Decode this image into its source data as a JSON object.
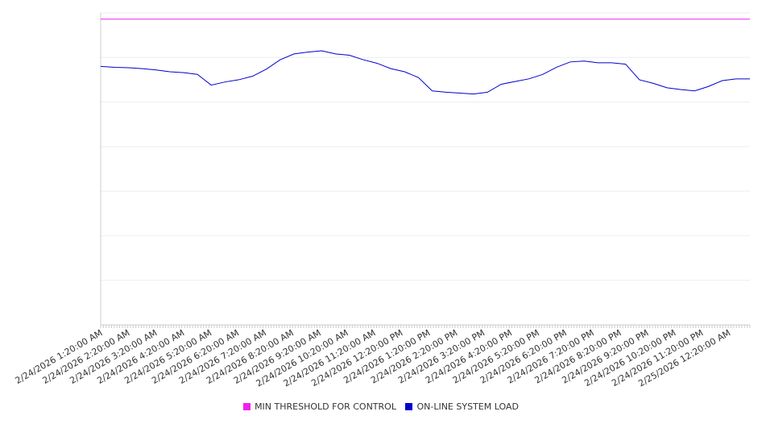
{
  "chart_data": {
    "type": "line",
    "title": "",
    "xlabel": "",
    "ylabel": "",
    "grid": true,
    "legend_placement": "bottom",
    "y_axis_labels_shown": false,
    "x_ticks": [
      "2/24/2026 1:20:00 AM",
      "2/24/2026 2:20:00 AM",
      "2/24/2026 3:20:00 AM",
      "2/24/2026 4:20:00 AM",
      "2/24/2026 5:20:00 AM",
      "2/24/2026 6:20:00 AM",
      "2/24/2026 7:20:00 AM",
      "2/24/2026 8:20:00 AM",
      "2/24/2026 9:20:00 AM",
      "2/24/2026 10:20:00 AM",
      "2/24/2026 11:20:00 AM",
      "2/24/2026 12:20:00 PM",
      "2/24/2026 1:20:00 PM",
      "2/24/2026 2:20:00 PM",
      "2/24/2026 3:20:00 PM",
      "2/24/2026 4:20:00 PM",
      "2/24/2026 5:20:00 PM",
      "2/24/2026 6:20:00 PM",
      "2/24/2026 7:20:00 PM",
      "2/24/2026 8:20:00 PM",
      "2/24/2026 9:20:00 PM",
      "2/24/2026 10:20:00 PM",
      "2/24/2026 11:20:00 PM",
      "2/25/2026 12:20:00 AM"
    ],
    "ylim": [
      0,
      7
    ],
    "series": [
      {
        "name": "MIN THRESHOLD FOR CONTROL",
        "color": "#ee22ee",
        "values": [
          6.86,
          6.86,
          6.86,
          6.86,
          6.86,
          6.86,
          6.86,
          6.86,
          6.86,
          6.86,
          6.86,
          6.86,
          6.86,
          6.86,
          6.86,
          6.86,
          6.86,
          6.86,
          6.86,
          6.86,
          6.86,
          6.86,
          6.86,
          6.86,
          6.86,
          6.86,
          6.86,
          6.86,
          6.86,
          6.86,
          6.86,
          6.86,
          6.86,
          6.86,
          6.86,
          6.86,
          6.86,
          6.86,
          6.86,
          6.86,
          6.86,
          6.86,
          6.86,
          6.86,
          6.86,
          6.86,
          6.86,
          6.86
        ]
      },
      {
        "name": "ON-LINE SYSTEM LOAD",
        "color": "#0000cc",
        "values": [
          5.8,
          5.78,
          5.77,
          5.75,
          5.72,
          5.68,
          5.66,
          5.62,
          5.38,
          5.45,
          5.5,
          5.58,
          5.74,
          5.95,
          6.08,
          6.12,
          6.15,
          6.08,
          6.05,
          5.95,
          5.87,
          5.75,
          5.68,
          5.55,
          5.25,
          5.22,
          5.2,
          5.18,
          5.22,
          5.4,
          5.46,
          5.52,
          5.62,
          5.78,
          5.9,
          5.92,
          5.88,
          5.88,
          5.85,
          5.5,
          5.42,
          5.32,
          5.28,
          5.25,
          5.35,
          5.48,
          5.52,
          5.52
        ]
      }
    ]
  }
}
